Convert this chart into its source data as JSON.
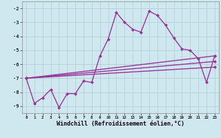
{
  "background_color": "#cfe8f0",
  "grid_color": "#b0cfd8",
  "line_color": "#993399",
  "marker_style": "D",
  "marker_size": 2.0,
  "line_width": 1.0,
  "xlim": [
    -0.5,
    23.5
  ],
  "ylim": [
    -9.5,
    -1.5
  ],
  "xlabel": "Windchill (Refroidissement éolien,°C)",
  "xlabel_fontsize": 6.0,
  "xtick_labels": [
    "0",
    "1",
    "2",
    "3",
    "4",
    "5",
    "6",
    "7",
    "8",
    "9",
    "10",
    "11",
    "12",
    "13",
    "14",
    "15",
    "16",
    "17",
    "18",
    "19",
    "20",
    "21",
    "22",
    "23"
  ],
  "yticks": [
    -2,
    -3,
    -4,
    -5,
    -6,
    -7,
    -8,
    -9
  ],
  "ytick_labels": [
    "-2",
    "-3",
    "-4",
    "-5",
    "-6",
    "-7",
    "-8",
    "-9"
  ],
  "series": [
    {
      "x": [
        0,
        1,
        2,
        3,
        4,
        5,
        6,
        7,
        8,
        9,
        10,
        11,
        12,
        13,
        14,
        15,
        16,
        17,
        18,
        19,
        20,
        21,
        22,
        23
      ],
      "y": [
        -7.0,
        -8.8,
        -8.4,
        -7.8,
        -9.1,
        -8.1,
        -8.1,
        -7.2,
        -7.3,
        -5.4,
        -4.2,
        -2.3,
        -3.0,
        -3.5,
        -3.7,
        -2.2,
        -2.5,
        -3.2,
        -4.1,
        -4.9,
        -5.0,
        -5.6,
        -7.3,
        -5.4
      ]
    },
    {
      "x": [
        0,
        23
      ],
      "y": [
        -7.0,
        -5.4
      ]
    },
    {
      "x": [
        0,
        23
      ],
      "y": [
        -7.0,
        -5.8
      ]
    },
    {
      "x": [
        0,
        23
      ],
      "y": [
        -7.0,
        -6.2
      ]
    }
  ]
}
